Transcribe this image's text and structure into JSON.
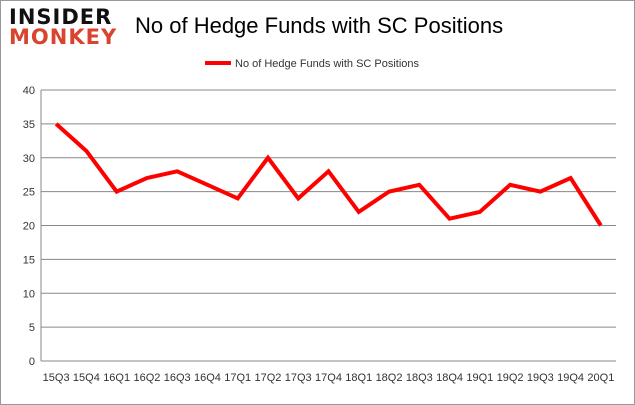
{
  "logo": {
    "line1": "INSIDER",
    "line2": "MONKEY"
  },
  "chart_data": {
    "type": "line",
    "title": "No of Hedge Funds with SC Positions",
    "categories": [
      "15Q3",
      "15Q4",
      "16Q1",
      "16Q2",
      "16Q3",
      "16Q4",
      "17Q1",
      "17Q2",
      "17Q3",
      "17Q4",
      "18Q1",
      "18Q2",
      "18Q3",
      "18Q4",
      "19Q1",
      "19Q2",
      "19Q3",
      "19Q4",
      "20Q1"
    ],
    "series": [
      {
        "name": "No of Hedge Funds with SC Positions",
        "color": "#ff0000",
        "values": [
          35,
          31,
          25,
          27,
          28,
          26,
          24,
          30,
          24,
          28,
          22,
          25,
          26,
          21,
          22,
          26,
          25,
          27,
          20
        ]
      }
    ],
    "ylim": [
      0,
      40
    ],
    "yticks": [
      0,
      5,
      10,
      15,
      20,
      25,
      30,
      35,
      40
    ],
    "grid": true,
    "legend": "top-center"
  }
}
